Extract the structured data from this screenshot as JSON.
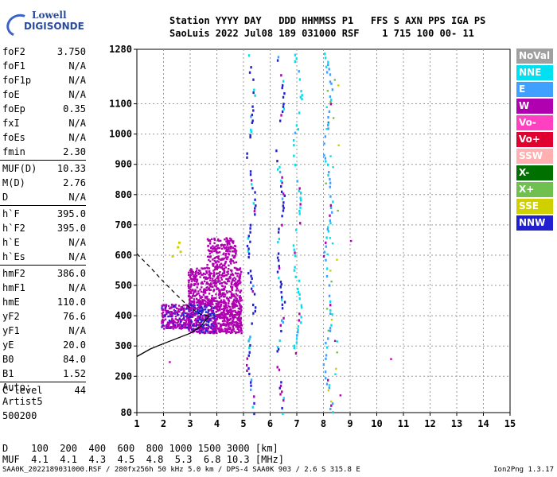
{
  "logo": {
    "line1": "Lowell",
    "line2": "DIGISONDE"
  },
  "header": {
    "row1": "Station YYYY DAY   DDD HHMMSS P1   FFS S AXN PPS IGA PS",
    "row2": "SaoLuis 2022 Jul08 189 031000 RSF    1 715 100 00- 11"
  },
  "params": {
    "g1": [
      {
        "k": "foF2",
        "v": "3.750"
      },
      {
        "k": "foF1",
        "v": "N/A"
      },
      {
        "k": "foF1p",
        "v": "N/A"
      },
      {
        "k": "foE",
        "v": "N/A"
      },
      {
        "k": "foEp",
        "v": "0.35"
      },
      {
        "k": "fxI",
        "v": "N/A"
      },
      {
        "k": "foEs",
        "v": "N/A"
      },
      {
        "k": "fmin",
        "v": "2.30"
      }
    ],
    "g2": [
      {
        "k": "MUF(D)",
        "v": "10.33"
      },
      {
        "k": "M(D)",
        "v": "2.76"
      },
      {
        "k": "D",
        "v": "N/A"
      }
    ],
    "g3": [
      {
        "k": "h`F",
        "v": "395.0"
      },
      {
        "k": "h`F2",
        "v": "395.0"
      },
      {
        "k": "h`E",
        "v": "N/A"
      },
      {
        "k": "h`Es",
        "v": "N/A"
      }
    ],
    "g4": [
      {
        "k": "hmF2",
        "v": "386.0"
      },
      {
        "k": "hmF1",
        "v": "N/A"
      },
      {
        "k": "hmE",
        "v": "110.0"
      },
      {
        "k": "yF2",
        "v": "76.6"
      },
      {
        "k": "yF1",
        "v": "N/A"
      },
      {
        "k": "yE",
        "v": "20.0"
      },
      {
        "k": "B0",
        "v": "84.0"
      },
      {
        "k": "B1",
        "v": "1.52"
      }
    ],
    "g5": [
      {
        "k": "C-level",
        "v": "44"
      }
    ]
  },
  "auto": {
    "l1": "Auto:",
    "l2": "Artist5",
    "l3": "500200"
  },
  "legend": [
    {
      "label": "NoVal",
      "color": "#a0a0a0"
    },
    {
      "label": "NNE",
      "color": "#00e0f0"
    },
    {
      "label": "E",
      "color": "#40a0ff"
    },
    {
      "label": "W",
      "color": "#b000b0"
    },
    {
      "label": "Vo-",
      "color": "#ff40c0"
    },
    {
      "label": "Vo+",
      "color": "#e00030"
    },
    {
      "label": "SSW",
      "color": "#ffb0b0"
    },
    {
      "label": "X-",
      "color": "#007000"
    },
    {
      "label": "X+",
      "color": "#70c050"
    },
    {
      "label": "SSE",
      "color": "#d0d000"
    },
    {
      "label": "NNW",
      "color": "#2020d0"
    }
  ],
  "muf_table": {
    "row1": "D    100  200  400  600  800 1000 1500 3000 [km]",
    "row2": "MUF  4.1  4.1  4.3  4.5  4.8  5.3  6.8 10.3 [MHz]"
  },
  "footer": "SAA0K_2022189031000.RSF / 280fx256h 50 kHz 5.0 km / DPS-4 SAA0K 903 / 2.6 S 315.8 E",
  "footer_right": "Ion2Png 1.3.17",
  "chart_data": {
    "type": "scatter",
    "x_ticks": [
      "1",
      "2",
      "3",
      "4",
      "5",
      "6",
      "7",
      "8",
      "9",
      "10",
      "11",
      "12",
      "13",
      "14",
      "15"
    ],
    "y_ticks": [
      "80",
      "200",
      "300",
      "400",
      "500",
      "600",
      "700",
      "800",
      "900",
      "1000",
      "1100",
      "1280"
    ],
    "xlim": [
      1,
      15
    ],
    "ylim": [
      80,
      1280
    ],
    "grid": true,
    "trace_colors": {
      "o_mode": "#b000b0",
      "o_mode_alt": "#2020d0",
      "multi": "#2020d0",
      "echo_e": "#40a0ff",
      "echo_n": "#00e0f0",
      "echo_x": "#70c050",
      "echo_s": "#d0d000"
    },
    "profile_solid": [
      [
        1.0,
        265
      ],
      [
        1.5,
        290
      ],
      [
        2.0,
        308
      ],
      [
        2.5,
        325
      ],
      [
        3.0,
        342
      ],
      [
        3.4,
        365
      ],
      [
        3.6,
        388
      ],
      [
        3.75,
        400
      ]
    ],
    "profile_dashed": [
      [
        1.0,
        605
      ],
      [
        1.5,
        560
      ],
      [
        2.0,
        512
      ],
      [
        2.5,
        468
      ],
      [
        3.0,
        425
      ],
      [
        3.4,
        405
      ],
      [
        3.75,
        398
      ]
    ],
    "f2_cluster": {
      "f_range": [
        2.9,
        4.9
      ],
      "h_range": [
        345,
        660
      ]
    },
    "f2_lowband": {
      "f_range": [
        1.9,
        3.0
      ],
      "h_range": [
        360,
        440
      ]
    },
    "multi_traces": [
      {
        "f": 5.25,
        "h_range": [
          80,
          1270
        ],
        "color": "#2020d0"
      },
      {
        "f": 6.35,
        "h_range": [
          80,
          1260
        ],
        "color": "#2020d0"
      },
      {
        "f": 7.0,
        "h_range": [
          280,
          1280
        ],
        "color": "#00e0f0"
      },
      {
        "f": 8.15,
        "h_range": [
          85,
          1270
        ],
        "color": "#40a0ff"
      }
    ],
    "scatter_extra": [
      [
        8.4,
        320
      ],
      [
        10.5,
        260
      ],
      [
        2.2,
        250
      ],
      [
        8.6,
        140
      ],
      [
        9.0,
        650
      ]
    ]
  }
}
